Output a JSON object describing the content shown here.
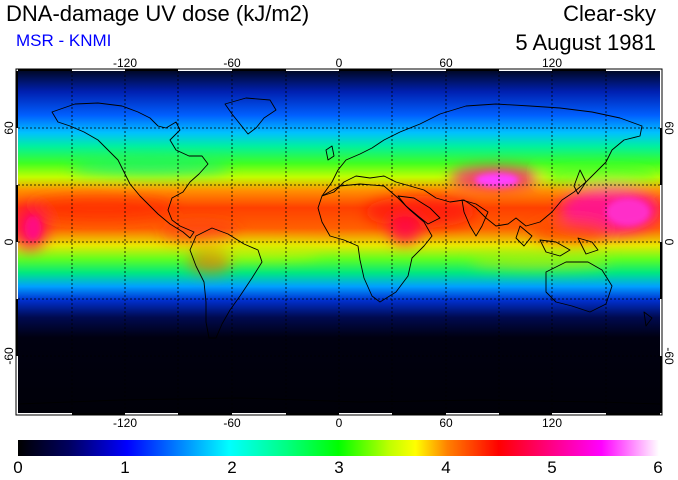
{
  "header": {
    "title": "DNA-damage UV dose (kJ/m2)",
    "subtitle": "MSR - KNMI",
    "condition": "Clear-sky",
    "date": "5 August 1981"
  },
  "map": {
    "projection": "equirectangular",
    "lon_range": [
      -180,
      180
    ],
    "lat_range": [
      -90,
      90
    ],
    "gridlines": "dashed every 30 degrees",
    "lon_tick_labels": [
      "-120",
      "-60",
      "0",
      "60",
      "120"
    ],
    "lat_tick_labels_left": [
      "60",
      "0",
      "-60"
    ],
    "lat_tick_labels_right": [
      "60",
      "0",
      "-60"
    ],
    "colors": {
      "low_dose": "#000010",
      "mid_dose": "#00ff40",
      "high_dose": "#ff0000",
      "peak_dose": "#ff00ff"
    }
  },
  "colorbar": {
    "min": 0,
    "max": 6,
    "tick_labels": [
      "0",
      "1",
      "2",
      "3",
      "4",
      "5",
      "6"
    ]
  }
}
